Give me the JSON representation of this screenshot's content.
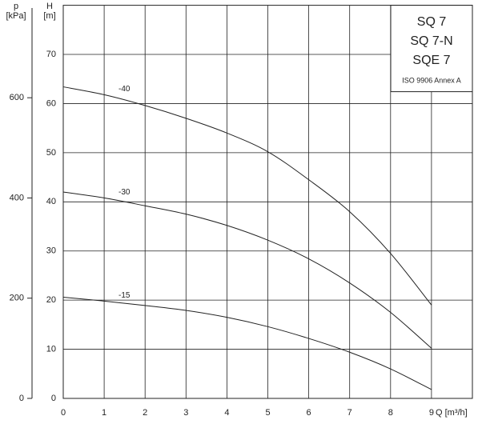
{
  "chart_data": {
    "type": "line",
    "title_lines": [
      "SQ 7",
      "SQ 7-N",
      "SQE 7"
    ],
    "subtitle": "ISO 9906 Annex A",
    "xlabel": "Q [m³/h]",
    "ylabel": "H",
    "yunit": "[m]",
    "y2label": "p",
    "y2unit": "[kPa]",
    "x": [
      0,
      1,
      2,
      3,
      4,
      5,
      6,
      7,
      8,
      9
    ],
    "series": [
      {
        "name": "-40",
        "color": "#222222",
        "values": [
          63.4,
          61.8,
          59.6,
          57,
          54,
          50.2,
          44.5,
          38,
          29.5,
          19
        ]
      },
      {
        "name": "-30",
        "color": "#222222",
        "values": [
          42,
          40.8,
          39.2,
          37.5,
          35.2,
          32.2,
          28.4,
          23.5,
          17.5,
          10.2
        ]
      },
      {
        "name": "-15",
        "color": "#222222",
        "values": [
          20.6,
          19.8,
          18.9,
          17.9,
          16.5,
          14.6,
          12.2,
          9.4,
          6,
          1.8
        ]
      }
    ],
    "xlim": [
      0,
      10
    ],
    "xticks": [
      0,
      1,
      2,
      3,
      4,
      5,
      6,
      7,
      8,
      9
    ],
    "ylim": [
      0,
      80
    ],
    "yticks": [
      0,
      10,
      20,
      30,
      40,
      50,
      60,
      70
    ],
    "y2lim": [
      0,
      784.5
    ],
    "y2ticks": [
      0,
      200,
      400,
      600
    ],
    "grid": true
  }
}
